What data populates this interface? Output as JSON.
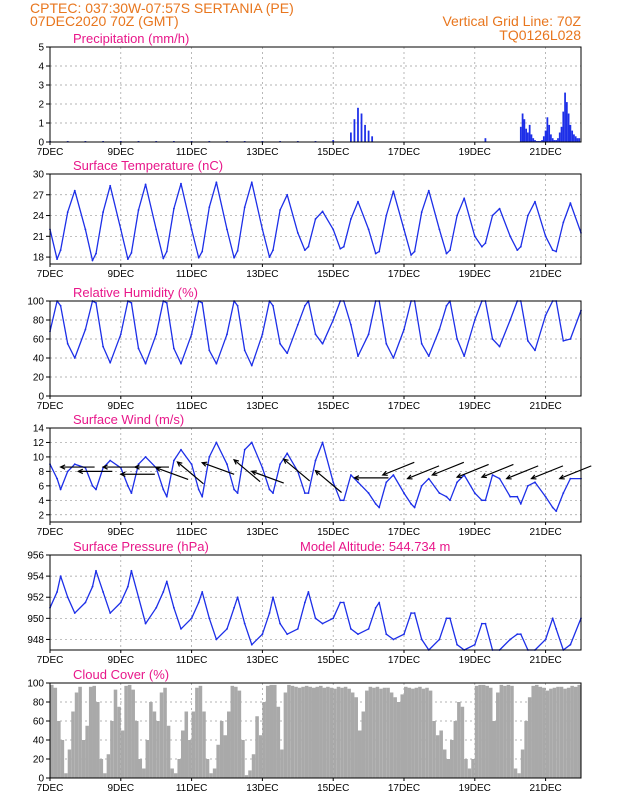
{
  "header": {
    "line1_left": "CPTEC:   037:30W-07:57S   SERTANIA (PE)",
    "line2_left": "07DEC2020 70Z (GMT)",
    "line2_right": "Vertical Grid Line: 70Z",
    "line3_right": "TQ0126L028"
  },
  "colors": {
    "header": "#e8761e",
    "title": "#e8178a",
    "series": "#1d2fe8",
    "cloud": "#a9a9a9",
    "wind": "#000000"
  },
  "x_ticks": [
    "7DEC",
    "9DEC",
    "11DEC",
    "13DEC",
    "15DEC",
    "17DEC",
    "19DEC",
    "21DEC"
  ],
  "chart_data": [
    {
      "type": "bar",
      "title": "Precipitation (mm/h)",
      "x_range": [
        0,
        15
      ],
      "ylim": [
        0,
        5
      ],
      "yticks": [
        0,
        1,
        2,
        3,
        4,
        5
      ],
      "grid": true,
      "x": [
        0.0,
        0.5,
        1.0,
        1.5,
        2.0,
        2.5,
        3.0,
        3.5,
        4.0,
        4.5,
        5.0,
        5.5,
        6.0,
        6.5,
        7.0,
        7.5,
        8.0,
        8.5,
        8.6,
        8.7,
        8.8,
        8.9,
        9.0,
        9.1,
        12.3,
        13.3,
        13.35,
        13.4,
        13.45,
        13.5,
        13.55,
        13.6,
        13.65,
        13.7,
        13.75,
        13.8,
        13.85,
        13.9,
        13.95,
        14.0,
        14.05,
        14.1,
        14.15,
        14.2,
        14.25,
        14.3,
        14.35,
        14.4,
        14.45,
        14.5,
        14.55,
        14.6,
        14.65,
        14.7,
        14.75,
        14.8,
        14.85,
        14.9,
        14.95
      ],
      "values": [
        0.05,
        0.05,
        0.05,
        0.05,
        0.05,
        0.05,
        0.05,
        0.05,
        0.05,
        0.05,
        0.05,
        0.05,
        0.05,
        0.05,
        0.05,
        0.05,
        0.1,
        0.5,
        1.2,
        1.8,
        1.5,
        0.9,
        0.6,
        0.3,
        0.2,
        0.8,
        1.5,
        1.2,
        0.7,
        0.5,
        0.9,
        0.4,
        0.2,
        0.1,
        0.05,
        0.05,
        0.05,
        0.1,
        0.3,
        0.6,
        1.3,
        0.9,
        0.4,
        0.2,
        0.1,
        0.1,
        0.2,
        0.5,
        0.8,
        1.6,
        2.6,
        2.1,
        1.5,
        0.9,
        0.6,
        0.4,
        0.3,
        0.2,
        0.2
      ]
    },
    {
      "type": "line",
      "title": "Surface Temperature (nC)",
      "x_range": [
        0,
        15
      ],
      "ylim": [
        17,
        30
      ],
      "yticks": [
        18,
        21,
        24,
        27,
        30
      ],
      "grid": true,
      "x": [
        0.0,
        0.2,
        0.3,
        0.5,
        0.7,
        1.0,
        1.2,
        1.3,
        1.5,
        1.7,
        2.0,
        2.2,
        2.3,
        2.5,
        2.7,
        3.0,
        3.2,
        3.3,
        3.5,
        3.7,
        4.0,
        4.2,
        4.3,
        4.5,
        4.7,
        5.0,
        5.2,
        5.3,
        5.5,
        5.7,
        6.0,
        6.2,
        6.3,
        6.5,
        6.7,
        7.0,
        7.2,
        7.3,
        7.5,
        7.7,
        8.0,
        8.2,
        8.3,
        8.5,
        8.7,
        9.0,
        9.2,
        9.3,
        9.5,
        9.7,
        10.0,
        10.2,
        10.3,
        10.5,
        10.7,
        11.0,
        11.2,
        11.3,
        11.5,
        11.7,
        12.0,
        12.2,
        12.3,
        12.5,
        12.7,
        13.0,
        13.2,
        13.3,
        13.5,
        13.7,
        14.0,
        14.2,
        14.3,
        14.5,
        14.7,
        15.0
      ],
      "values": [
        22.0,
        17.7,
        19.0,
        24.5,
        27.6,
        22.0,
        17.5,
        18.5,
        24.5,
        28.3,
        22.0,
        17.7,
        18.6,
        24.8,
        28.5,
        22.0,
        17.8,
        18.8,
        25.0,
        28.6,
        22.0,
        17.9,
        18.8,
        25.2,
        28.8,
        22.0,
        17.9,
        18.9,
        25.2,
        28.8,
        22.0,
        18.0,
        19.0,
        24.8,
        27.0,
        21.5,
        19.0,
        19.5,
        23.5,
        24.6,
        22.0,
        19.2,
        19.5,
        23.5,
        26.0,
        22.0,
        18.5,
        18.8,
        24.0,
        27.5,
        22.0,
        18.3,
        18.8,
        24.5,
        27.6,
        22.0,
        18.5,
        19.0,
        24.0,
        26.5,
        21.0,
        19.5,
        20.0,
        24.0,
        25.0,
        21.0,
        19.0,
        19.5,
        24.0,
        26.0,
        21.0,
        19.0,
        18.8,
        23.0,
        25.8,
        21.5
      ]
    },
    {
      "type": "line",
      "title": "Relative Humidity (%)",
      "x_range": [
        0,
        15
      ],
      "ylim": [
        0,
        100
      ],
      "yticks": [
        0,
        20,
        40,
        60,
        80,
        100
      ],
      "grid": true,
      "x": [
        0.0,
        0.2,
        0.3,
        0.5,
        0.7,
        1.0,
        1.2,
        1.3,
        1.5,
        1.7,
        2.0,
        2.2,
        2.3,
        2.5,
        2.7,
        3.0,
        3.2,
        3.3,
        3.5,
        3.7,
        4.0,
        4.2,
        4.3,
        4.5,
        4.7,
        5.0,
        5.2,
        5.3,
        5.5,
        5.7,
        6.0,
        6.2,
        6.3,
        6.5,
        6.7,
        7.0,
        7.2,
        7.3,
        7.5,
        7.7,
        8.0,
        8.2,
        8.3,
        8.5,
        8.7,
        9.0,
        9.2,
        9.3,
        9.5,
        9.7,
        10.0,
        10.2,
        10.3,
        10.5,
        10.7,
        11.0,
        11.2,
        11.3,
        11.5,
        11.7,
        12.0,
        12.2,
        12.3,
        12.5,
        12.7,
        13.0,
        13.2,
        13.3,
        13.5,
        13.7,
        14.0,
        14.2,
        14.3,
        14.5,
        14.7,
        15.0
      ],
      "values": [
        68,
        100,
        95,
        55,
        40,
        70,
        100,
        98,
        52,
        35,
        65,
        100,
        98,
        50,
        34,
        65,
        100,
        98,
        50,
        34,
        65,
        100,
        98,
        48,
        34,
        65,
        100,
        95,
        48,
        32,
        65,
        100,
        95,
        55,
        45,
        75,
        95,
        100,
        65,
        55,
        80,
        100,
        100,
        75,
        42,
        65,
        100,
        100,
        55,
        40,
        70,
        100,
        100,
        55,
        42,
        70,
        95,
        100,
        60,
        42,
        80,
        100,
        100,
        60,
        52,
        80,
        100,
        100,
        58,
        48,
        85,
        100,
        100,
        58,
        60,
        90
      ]
    },
    {
      "type": "line",
      "title": "Surface Wind (m/s)",
      "x_range": [
        0,
        15
      ],
      "ylim": [
        1,
        14
      ],
      "yticks": [
        2,
        4,
        6,
        8,
        10,
        12,
        14
      ],
      "grid": true,
      "x": [
        0.0,
        0.2,
        0.3,
        0.5,
        0.7,
        1.0,
        1.2,
        1.3,
        1.5,
        1.7,
        2.0,
        2.2,
        2.3,
        2.5,
        2.7,
        3.0,
        3.2,
        3.3,
        3.5,
        3.7,
        4.0,
        4.2,
        4.3,
        4.5,
        4.7,
        5.0,
        5.2,
        5.3,
        5.5,
        5.7,
        6.0,
        6.2,
        6.3,
        6.5,
        6.7,
        7.0,
        7.2,
        7.3,
        7.5,
        7.7,
        8.0,
        8.2,
        8.3,
        8.5,
        8.7,
        9.0,
        9.2,
        9.3,
        9.5,
        9.7,
        10.0,
        10.2,
        10.3,
        10.5,
        10.7,
        11.0,
        11.2,
        11.3,
        11.5,
        11.7,
        12.0,
        12.2,
        12.3,
        12.5,
        12.7,
        13.0,
        13.2,
        13.3,
        13.5,
        13.7,
        14.0,
        14.2,
        14.3,
        14.5,
        14.7,
        15.0
      ],
      "values": [
        9.0,
        7.0,
        5.5,
        8.0,
        9.0,
        8.5,
        6.0,
        5.5,
        8.5,
        9.5,
        8.5,
        6.0,
        5.0,
        9.0,
        10.0,
        8.5,
        5.5,
        4.5,
        9.5,
        11.0,
        9.0,
        5.5,
        4.5,
        10.0,
        12.0,
        9.0,
        5.5,
        5.0,
        11.0,
        12.0,
        8.5,
        5.5,
        5.0,
        9.0,
        10.5,
        8.0,
        5.0,
        5.0,
        9.5,
        12.0,
        6.5,
        4.0,
        4.0,
        7.5,
        6.5,
        5.0,
        3.5,
        3.0,
        6.5,
        7.5,
        5.0,
        3.5,
        3.0,
        6.0,
        7.0,
        5.0,
        4.5,
        4.0,
        6.5,
        7.5,
        5.0,
        4.0,
        4.0,
        7.5,
        7.0,
        4.5,
        4.5,
        3.5,
        6.0,
        6.5,
        4.5,
        3.0,
        2.5,
        5.0,
        7.0,
        7.0
      ],
      "wind_barbs": [
        {
          "x": 0.3,
          "speed": 8.6,
          "direction": "E"
        },
        {
          "x": 0.8,
          "speed": 8.0,
          "direction": "E"
        },
        {
          "x": 1.5,
          "speed": 8.6,
          "direction": "E"
        },
        {
          "x": 2.0,
          "speed": 7.6,
          "direction": "E"
        },
        {
          "x": 2.4,
          "speed": 8.6,
          "direction": "E"
        },
        {
          "x": 3.0,
          "speed": 8.5,
          "direction": "ESE"
        },
        {
          "x": 3.6,
          "speed": 9.3,
          "direction": "SE"
        },
        {
          "x": 4.3,
          "speed": 9.2,
          "direction": "ESE"
        },
        {
          "x": 5.2,
          "speed": 9.6,
          "direction": "SE"
        },
        {
          "x": 5.7,
          "speed": 8.0,
          "direction": "ESE"
        },
        {
          "x": 6.6,
          "speed": 9.7,
          "direction": "SE"
        },
        {
          "x": 7.5,
          "speed": 8.1,
          "direction": "SE"
        },
        {
          "x": 8.6,
          "speed": 7.1,
          "direction": "E"
        },
        {
          "x": 9.4,
          "speed": 7.5,
          "direction": "ENE"
        },
        {
          "x": 10.1,
          "speed": 7.0,
          "direction": "ENE"
        },
        {
          "x": 10.8,
          "speed": 7.5,
          "direction": "ENE"
        },
        {
          "x": 11.5,
          "speed": 7.2,
          "direction": "ENE"
        },
        {
          "x": 12.2,
          "speed": 7.2,
          "direction": "ENE"
        },
        {
          "x": 12.9,
          "speed": 7.0,
          "direction": "ENE"
        },
        {
          "x": 13.6,
          "speed": 7.0,
          "direction": "ENE"
        },
        {
          "x": 14.4,
          "speed": 7.0,
          "direction": "ENE"
        }
      ]
    },
    {
      "type": "line",
      "title": "Surface Pressure (hPa)",
      "annotation": "Model Altitude: 544.734 m",
      "x_range": [
        0,
        15
      ],
      "ylim": [
        947,
        956
      ],
      "yticks": [
        948,
        950,
        952,
        954,
        956
      ],
      "grid": true,
      "x": [
        0.0,
        0.2,
        0.3,
        0.5,
        0.7,
        1.0,
        1.2,
        1.3,
        1.5,
        1.7,
        2.0,
        2.2,
        2.3,
        2.5,
        2.7,
        3.0,
        3.2,
        3.3,
        3.5,
        3.7,
        4.0,
        4.2,
        4.3,
        4.5,
        4.7,
        5.0,
        5.2,
        5.3,
        5.5,
        5.7,
        6.0,
        6.2,
        6.3,
        6.5,
        6.7,
        7.0,
        7.2,
        7.3,
        7.5,
        7.7,
        8.0,
        8.2,
        8.3,
        8.5,
        8.7,
        9.0,
        9.2,
        9.3,
        9.5,
        9.7,
        10.0,
        10.2,
        10.3,
        10.5,
        10.7,
        11.0,
        11.2,
        11.3,
        11.5,
        11.7,
        12.0,
        12.2,
        12.3,
        12.5,
        12.7,
        13.0,
        13.2,
        13.3,
        13.5,
        13.7,
        14.0,
        14.2,
        14.3,
        14.5,
        14.7,
        15.0
      ],
      "values": [
        951.0,
        952.5,
        954.0,
        952.0,
        950.5,
        951.5,
        953.0,
        954.5,
        952.5,
        950.5,
        951.5,
        953.0,
        954.5,
        952.0,
        949.5,
        951.0,
        952.5,
        953.5,
        951.0,
        949.0,
        950.0,
        951.5,
        952.5,
        950.0,
        948.0,
        949.0,
        951.0,
        952.0,
        949.5,
        947.5,
        948.5,
        950.5,
        952.0,
        949.5,
        948.5,
        949.0,
        951.5,
        952.5,
        950.0,
        949.5,
        950.0,
        951.5,
        951.5,
        949.0,
        948.5,
        949.0,
        951.0,
        951.5,
        948.5,
        948.0,
        948.5,
        950.5,
        950.5,
        948.0,
        947.0,
        948.0,
        950.0,
        950.0,
        947.5,
        946.5,
        947.5,
        949.5,
        949.5,
        947.0,
        946.5,
        948.0,
        948.5,
        948.5,
        946.5,
        947.0,
        948.0,
        950.0,
        949.0,
        947.0,
        947.5,
        950.0
      ]
    },
    {
      "type": "bar",
      "title": "Cloud Cover (%)",
      "x_range": [
        0,
        15
      ],
      "ylim": [
        0,
        100
      ],
      "yticks": [
        0,
        20,
        40,
        60,
        80,
        100
      ],
      "grid": true,
      "x": [
        0.05,
        0.15,
        0.25,
        0.35,
        0.45,
        0.55,
        0.65,
        0.75,
        0.85,
        0.95,
        1.05,
        1.15,
        1.25,
        1.35,
        1.45,
        1.55,
        1.65,
        1.75,
        1.85,
        1.95,
        2.05,
        2.15,
        2.25,
        2.35,
        2.45,
        2.55,
        2.65,
        2.75,
        2.85,
        2.95,
        3.05,
        3.15,
        3.25,
        3.35,
        3.45,
        3.55,
        3.65,
        3.75,
        3.85,
        3.95,
        4.05,
        4.15,
        4.25,
        4.35,
        4.45,
        4.55,
        4.65,
        4.75,
        4.85,
        4.95,
        5.05,
        5.15,
        5.25,
        5.35,
        5.45,
        5.55,
        5.65,
        5.75,
        5.85,
        5.95,
        6.05,
        6.15,
        6.25,
        6.35,
        6.45,
        6.55,
        6.65,
        6.75,
        6.85,
        6.95,
        7.05,
        7.15,
        7.25,
        7.35,
        7.45,
        7.55,
        7.65,
        7.75,
        7.85,
        7.95,
        8.05,
        8.15,
        8.25,
        8.35,
        8.45,
        8.55,
        8.65,
        8.75,
        8.85,
        8.95,
        9.05,
        9.15,
        9.25,
        9.35,
        9.45,
        9.55,
        9.65,
        9.75,
        9.85,
        9.95,
        10.05,
        10.15,
        10.25,
        10.35,
        10.45,
        10.55,
        10.65,
        10.75,
        10.85,
        10.95,
        11.05,
        11.15,
        11.25,
        11.35,
        11.45,
        11.55,
        11.65,
        11.75,
        11.85,
        11.95,
        12.05,
        12.15,
        12.25,
        12.35,
        12.45,
        12.55,
        12.65,
        12.75,
        12.85,
        12.95,
        13.05,
        13.15,
        13.25,
        13.35,
        13.45,
        13.55,
        13.65,
        13.75,
        13.85,
        13.95,
        14.05,
        14.15,
        14.25,
        14.35,
        14.45,
        14.55,
        14.65,
        14.75,
        14.85,
        14.95
      ],
      "values": [
        98,
        95,
        60,
        40,
        5,
        30,
        70,
        90,
        96,
        40,
        55,
        96,
        97,
        80,
        20,
        5,
        25,
        60,
        93,
        75,
        50,
        97,
        98,
        93,
        60,
        20,
        10,
        40,
        80,
        70,
        60,
        90,
        95,
        55,
        10,
        5,
        20,
        50,
        70,
        40,
        70,
        95,
        97,
        70,
        20,
        5,
        10,
        35,
        60,
        45,
        70,
        97,
        96,
        92,
        40,
        3,
        8,
        25,
        65,
        45,
        80,
        97,
        98,
        98,
        75,
        30,
        90,
        98,
        97,
        96,
        95,
        96,
        97,
        96,
        95,
        96,
        97,
        95,
        96,
        95,
        94,
        96,
        95,
        96,
        94,
        90,
        85,
        50,
        70,
        92,
        96,
        95,
        96,
        94,
        95,
        95,
        90,
        85,
        80,
        88,
        96,
        95,
        94,
        95,
        96,
        94,
        95,
        92,
        60,
        45,
        50,
        30,
        20,
        40,
        60,
        80,
        75,
        20,
        10,
        20,
        97,
        98,
        98,
        97,
        95,
        60,
        90,
        98,
        97,
        98,
        97,
        10,
        5,
        30,
        60,
        85,
        97,
        98,
        96,
        95,
        92,
        94,
        95,
        96,
        96,
        94,
        95,
        97,
        96,
        98
      ]
    }
  ]
}
